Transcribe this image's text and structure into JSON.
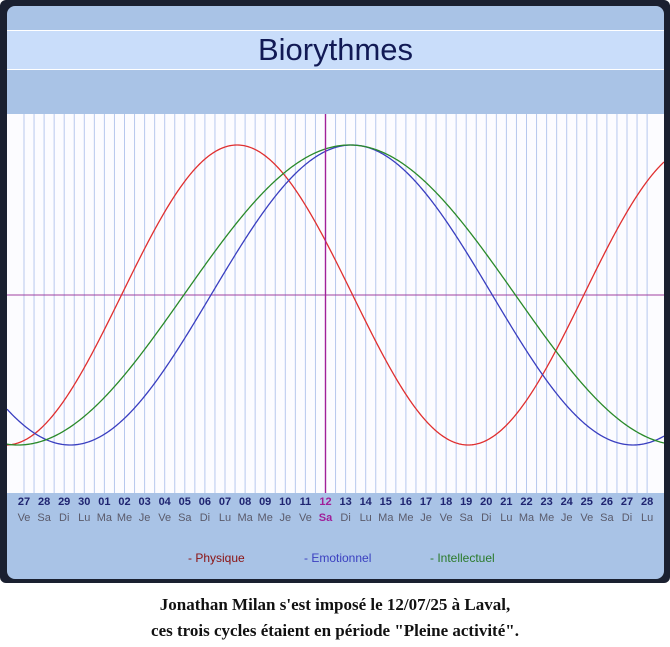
{
  "chart_data": {
    "type": "line",
    "title": "Biorythmes",
    "ylim": [
      -1,
      1
    ],
    "today_index": 15,
    "days": [
      "27",
      "28",
      "29",
      "30",
      "01",
      "02",
      "03",
      "04",
      "05",
      "06",
      "07",
      "08",
      "09",
      "10",
      "11",
      "12",
      "13",
      "14",
      "15",
      "16",
      "17",
      "18",
      "19",
      "20",
      "21",
      "22",
      "23",
      "24",
      "25",
      "26",
      "27",
      "28"
    ],
    "weekdays": [
      "Ve",
      "Sa",
      "Di",
      "Lu",
      "Ma",
      "Me",
      "Je",
      "Ve",
      "Sa",
      "Di",
      "Lu",
      "Ma",
      "Me",
      "Je",
      "Ve",
      "Sa",
      "Di",
      "Lu",
      "Ma",
      "Me",
      "Je",
      "Ve",
      "Sa",
      "Di",
      "Lu",
      "Ma",
      "Me",
      "Je",
      "Ve",
      "Sa",
      "Di",
      "Lu"
    ],
    "series": [
      {
        "name": "- Physique",
        "color": "#e03030",
        "period": 23,
        "peak_day": 10.6
      },
      {
        "name": "- Emotionnel",
        "color": "#3a3fc0",
        "period": 28,
        "peak_day": 16.3
      },
      {
        "name": "- Intellectuel",
        "color": "#2a8a2a",
        "period": 33,
        "peak_day": 16.2
      }
    ],
    "legend_colors": [
      "#8b1212",
      "#3a3fc0",
      "#2a7a2a"
    ],
    "today_color": "#a0209a",
    "zero_line_color": "#a040a0",
    "grid": true
  },
  "caption": {
    "line1": "Jonathan Milan s'est imposé le 12/07/25 à Laval,",
    "line2": "ces trois cycles étaient en période \"Pleine activité\"."
  }
}
